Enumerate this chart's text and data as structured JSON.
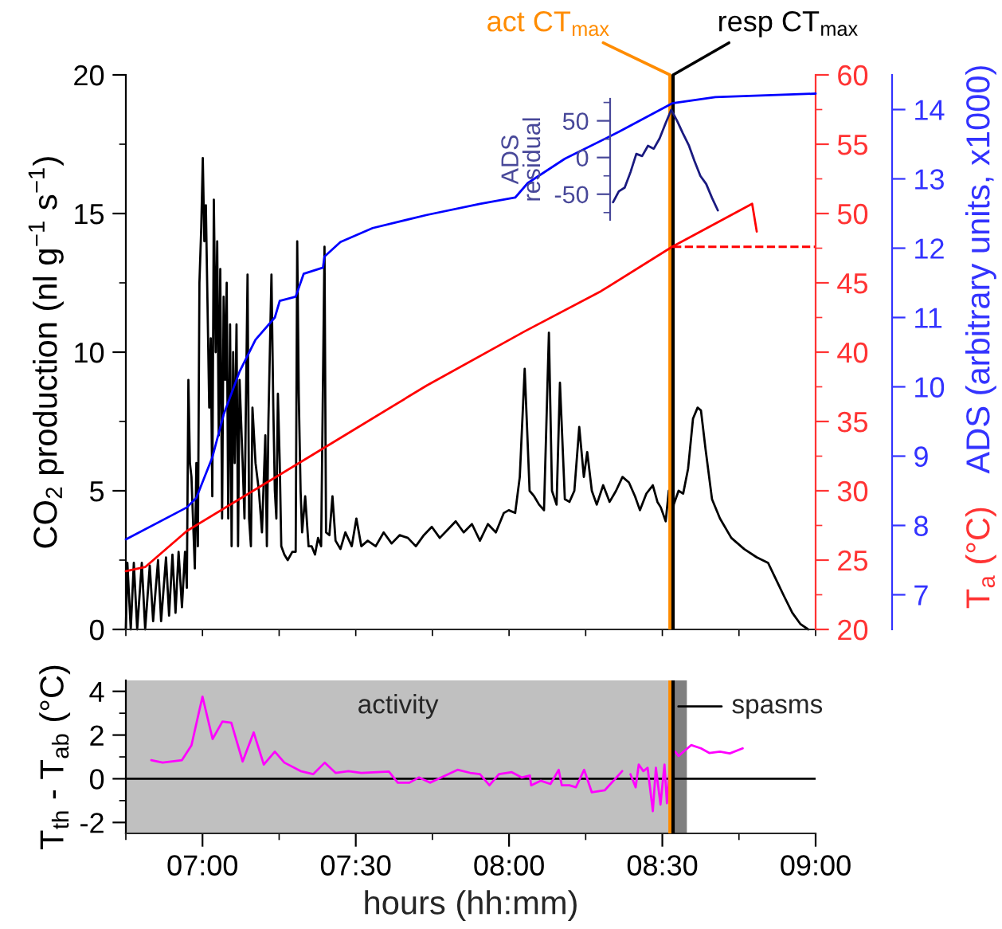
{
  "chart_data": [
    {
      "type": "line",
      "ylabel": "CO$_{2}$ production (nl g$^{−1}$ s$^{−1}$)",
      "y2label": "T$_{a}$ (°C)",
      "y3label": "ADS (arbitrary units, x1000)",
      "xlim": [
        6.75,
        9.0
      ],
      "xticks": [
        {
          "value": 6.75,
          "label": null
        },
        {
          "value": 7.0,
          "label": null
        },
        {
          "value": 7.25,
          "label": null
        },
        {
          "value": 7.5,
          "label": null
        },
        {
          "value": 7.75,
          "label": null
        },
        {
          "value": 8.0,
          "label": null
        },
        {
          "value": 8.25,
          "label": null
        },
        {
          "value": 8.5,
          "label": null
        },
        {
          "value": 8.75,
          "label": null
        },
        {
          "value": 9.0,
          "label": null
        }
      ],
      "ylim": [
        0,
        20
      ],
      "yticks": [
        0,
        {
          "value": 2.5,
          "label": null
        },
        5,
        {
          "value": 7.5,
          "label": null
        },
        10,
        {
          "value": 12.5,
          "label": null
        },
        15,
        {
          "value": 17.5,
          "label": null
        },
        20
      ],
      "y2lim": [
        20,
        60
      ],
      "y2ticks": [
        20,
        {
          "value": 22.5,
          "label": null
        },
        25,
        {
          "value": 27.5,
          "label": null
        },
        30,
        {
          "value": 32.5,
          "label": null
        },
        35,
        {
          "value": 37.5,
          "label": null
        },
        40,
        {
          "value": 42.5,
          "label": null
        },
        45,
        {
          "value": 47.5,
          "label": null
        },
        50,
        {
          "value": 52.5,
          "label": null
        },
        55,
        {
          "value": 57.5,
          "label": null
        },
        60
      ],
      "y3lim": [
        6.5,
        14.5
      ],
      "y3ticks": [
        7,
        8,
        9,
        10,
        11,
        12,
        13,
        14
      ],
      "tick_labels": "y",
      "ref_lines": [
        {
          "axis": "x",
          "value": 8.525,
          "label": "act CT$_{max}$",
          "color": "#ff8c00"
        },
        {
          "axis": "x",
          "value": 8.535,
          "label": "resp CT$_{max}$",
          "color": "#000000"
        }
      ],
      "series": [
        {
          "color": "#000000",
          "axis": "y",
          "x": [
            6.75,
            6.755,
            6.766,
            6.776,
            6.787,
            6.802,
            6.813,
            6.828,
            6.839,
            6.855,
            6.865,
            6.881,
            6.891,
            6.902,
            6.912,
            6.922,
            6.933,
            6.943,
            6.949,
            6.954,
            6.959,
            6.964,
            6.975,
            6.98,
            6.985,
            6.99,
            6.996,
            7.001,
            7.006,
            7.011,
            7.016,
            7.022,
            7.027,
            7.032,
            7.037,
            7.043,
            7.048,
            7.053,
            7.058,
            7.064,
            7.069,
            7.074,
            7.079,
            7.084,
            7.09,
            7.095,
            7.1,
            7.105,
            7.111,
            7.116,
            7.121,
            7.131,
            7.137,
            7.147,
            7.152,
            7.158,
            7.163,
            7.173,
            7.184,
            7.194,
            7.205,
            7.21,
            7.215,
            7.225,
            7.231,
            7.236,
            7.241,
            7.246,
            7.252,
            7.257,
            7.267,
            7.278,
            7.293,
            7.304,
            7.309,
            7.314,
            7.32,
            7.325,
            7.335,
            7.346,
            7.356,
            7.367,
            7.377,
            7.387,
            7.398,
            7.403,
            7.414,
            7.424,
            7.434,
            7.45,
            7.466,
            7.487,
            7.502,
            7.518,
            7.539,
            7.565,
            7.591,
            7.617,
            7.643,
            7.67,
            7.696,
            7.722,
            7.748,
            7.774,
            7.8,
            7.826,
            7.852,
            7.879,
            7.905,
            7.931,
            7.957,
            7.983,
            7.999,
            8.02,
            8.035,
            8.051,
            8.067,
            8.082,
            8.098,
            8.114,
            8.13,
            8.14,
            8.155,
            8.166,
            8.182,
            8.197,
            8.213,
            8.229,
            8.244,
            8.255,
            8.27,
            8.286,
            8.307,
            8.328,
            8.349,
            8.37,
            8.391,
            8.411,
            8.427,
            8.448,
            8.469,
            8.484,
            8.495,
            8.511,
            8.521,
            8.532,
            8.537,
            8.553,
            8.568,
            8.584,
            8.6,
            8.615,
            8.626,
            8.641,
            8.662,
            8.688,
            8.725,
            8.767,
            8.808,
            8.845,
            8.871,
            8.897,
            8.924,
            8.95,
            8.976
          ],
          "values": [
            0,
            2.4,
            0,
            2.4,
            0,
            2.4,
            0,
            2.3,
            0.3,
            2.5,
            0.3,
            2.6,
            0.5,
            2.7,
            0.6,
            2.8,
            0.8,
            2.8,
            1.5,
            9.0,
            6.0,
            5.5,
            2.2,
            6.0,
            3.0,
            12.5,
            14.5,
            17.0,
            14.0,
            15.3,
            12.0,
            8.0,
            10.5,
            4.8,
            15.5,
            10.0,
            14.0,
            7.0,
            13.0,
            4.0,
            12.0,
            9.0,
            12.5,
            4.0,
            11.0,
            3.0,
            10.0,
            6.0,
            11.0,
            3.0,
            9.0,
            6.0,
            4.0,
            12.8,
            4.0,
            3.0,
            8.0,
            6.0,
            5.0,
            3.5,
            7.0,
            3.0,
            7.5,
            12.8,
            8.0,
            5.0,
            4.0,
            8.5,
            6.0,
            3.0,
            2.7,
            2.5,
            2.8,
            2.8,
            14.0,
            8.5,
            5.0,
            3.5,
            4.8,
            3.0,
            3.0,
            2.7,
            3.3,
            3.0,
            13.8,
            3.5,
            3.4,
            4.8,
            3.2,
            2.9,
            3.5,
            3.0,
            4.0,
            3.0,
            3.2,
            3.0,
            3.5,
            3.1,
            3.4,
            3.3,
            3.0,
            3.4,
            3.7,
            3.3,
            3.6,
            3.9,
            3.5,
            3.8,
            3.2,
            3.8,
            3.5,
            4.2,
            4.3,
            4.2,
            5.5,
            9.4,
            5.0,
            4.8,
            4.5,
            4.3,
            10.7,
            5.0,
            4.5,
            8.9,
            4.7,
            4.6,
            5.0,
            7.3,
            5.5,
            6.4,
            5.0,
            4.5,
            5.2,
            4.6,
            5.0,
            5.5,
            5.3,
            4.8,
            4.3,
            4.9,
            5.2,
            4.6,
            4.4,
            3.9,
            5.0,
            3.7,
            4.5,
            5.0,
            4.9,
            5.8,
            7.6,
            8.0,
            7.9,
            6.5,
            4.7,
            4.0,
            3.3,
            2.9,
            2.6,
            2.4,
            1.8,
            1.2,
            0.6,
            0.2,
            0
          ]
        },
        {
          "color": "#ff0000",
          "axis": "y2",
          "x": [
            6.75,
            6.813,
            6.949,
            7.382,
            7.732,
            8.051,
            8.3,
            8.532,
            8.793,
            8.808
          ],
          "values": [
            24.2,
            24.5,
            27.1,
            32.9,
            37.6,
            41.5,
            44.4,
            47.6,
            50.7,
            48.7
          ]
        },
        {
          "color": "#ff0000",
          "axis": "y2",
          "line_style": "dashed",
          "x": [
            8.535,
            9.0
          ],
          "values": [
            47.6,
            47.6
          ]
        },
        {
          "color": "#0000ff",
          "axis": "y3",
          "x": [
            6.75,
            6.949,
            6.98,
            7.032,
            7.069,
            7.121,
            7.173,
            7.236,
            7.252,
            7.304,
            7.33,
            7.393,
            7.398,
            7.45,
            7.555,
            7.732,
            7.905,
            8.02,
            8.061,
            8.182,
            8.359,
            8.532,
            8.673,
            9.0
          ],
          "values": [
            7.8,
            8.26,
            8.4,
            8.98,
            9.6,
            10.22,
            10.68,
            11.0,
            11.24,
            11.3,
            11.63,
            11.72,
            11.88,
            12.09,
            12.29,
            12.48,
            12.64,
            12.73,
            12.94,
            13.29,
            13.68,
            14.09,
            14.18,
            14.23
          ]
        }
      ]
    },
    {
      "type": "line",
      "ylabel": "ADS\nresidual",
      "categories": [
        null,
        null,
        null,
        null,
        null,
        null,
        null,
        null,
        null,
        null,
        null,
        null,
        null,
        null,
        null,
        null,
        null,
        null,
        null
      ],
      "ylim": [
        -85,
        80
      ],
      "yticks": [
        {
          "value": -75,
          "label": null
        },
        -50,
        {
          "value": -25,
          "label": null
        },
        0,
        {
          "value": 25,
          "label": null
        },
        50,
        {
          "value": 75,
          "label": null
        }
      ],
      "tick_labels": "y",
      "series": [
        {
          "color": "#1a1a80",
          "values": [
            -61,
            -46,
            -41,
            -20,
            5,
            2,
            16,
            12,
            26,
            46,
            65,
            50,
            33,
            17,
            -5,
            -25,
            -36,
            -55,
            -72
          ]
        }
      ]
    },
    {
      "type": "line",
      "ylabel": "T$_{th}$ - T$_{ab}$ (°C)",
      "xlabel": "hours (hh:mm)",
      "xlim": [
        6.75,
        9.0
      ],
      "xticks": [
        {
          "value": 6.75,
          "label": null
        },
        {
          "value": 7.0,
          "label": "07:00"
        },
        {
          "value": 7.25,
          "label": null
        },
        {
          "value": 7.5,
          "label": "07:30"
        },
        {
          "value": 7.75,
          "label": null
        },
        {
          "value": 8.0,
          "label": "08:00"
        },
        {
          "value": 8.25,
          "label": null
        },
        {
          "value": 8.5,
          "label": "08:30"
        },
        {
          "value": 8.75,
          "label": null
        },
        {
          "value": 9.0,
          "label": "09:00"
        }
      ],
      "ylim": [
        -2.5,
        4.5
      ],
      "yticks": [
        -2,
        {
          "value": -1,
          "label": null
        },
        0,
        {
          "value": 1,
          "label": null
        },
        2,
        {
          "value": 3,
          "label": null
        },
        4
      ],
      "bands": [
        {
          "axis": "x",
          "from": 6.75,
          "to": 8.525,
          "label": "activity",
          "color": "#c0c0c0"
        },
        {
          "axis": "x",
          "from": 8.525,
          "to": 8.58,
          "label": "spasms",
          "color": "#808080"
        }
      ],
      "ref_lines": [
        {
          "axis": "y",
          "value": 0,
          "color": "#000000"
        },
        {
          "axis": "x",
          "value": 8.525,
          "color": "#ff8c00"
        },
        {
          "axis": "x",
          "value": 8.535,
          "color": "#000000"
        }
      ],
      "series": [
        {
          "color": "#ff00ff",
          "x": [
            6.833,
            6.87,
            6.933,
            6.964,
            7.0,
            7.033,
            7.065,
            7.094,
            7.131,
            7.167,
            7.2,
            7.236,
            7.267,
            7.32,
            7.361,
            7.399,
            7.434,
            7.476,
            7.518,
            7.57,
            7.608,
            7.637,
            7.675,
            7.706,
            7.742,
            7.779,
            7.832,
            7.873,
            7.905,
            7.936,
            7.967,
            8.009,
            8.041,
            8.068,
            8.072,
            8.103,
            8.135,
            8.162,
            8.172,
            8.197,
            8.218,
            8.245,
            8.27,
            8.312,
            8.369,
            8.38,
            8.396,
            8.413,
            8.423,
            8.438,
            8.452,
            8.469,
            8.479,
            8.494,
            8.507,
            8.515,
            8.528,
            8.542,
            8.553,
            8.569,
            8.594,
            8.626,
            8.653,
            8.688,
            8.72,
            8.762
          ],
          "values": [
            0.85,
            0.74,
            0.85,
            1.53,
            3.76,
            1.82,
            2.62,
            2.56,
            0.79,
            2.12,
            0.65,
            1.24,
            0.74,
            0.35,
            0.21,
            0.74,
            0.27,
            0.35,
            0.27,
            0.3,
            0.33,
            -0.18,
            -0.18,
            0.06,
            -0.18,
            0.06,
            0.41,
            0.27,
            0.21,
            -0.3,
            0.21,
            0.3,
            0.06,
            0.15,
            -0.3,
            -0.09,
            -0.24,
            0.41,
            -0.3,
            -0.3,
            -0.39,
            0.41,
            -0.62,
            -0.53,
            0.35,
            null,
            0.21,
            -0.39,
            0.65,
            0.35,
            0.5,
            -1.48,
            0.5,
            -1.18,
            0.65,
            -1.12,
            1.1,
            1.24,
            1.04,
            1.24,
            1.54,
            1.39,
            1.18,
            1.24,
            1.16,
            1.39
          ]
        }
      ]
    }
  ]
}
